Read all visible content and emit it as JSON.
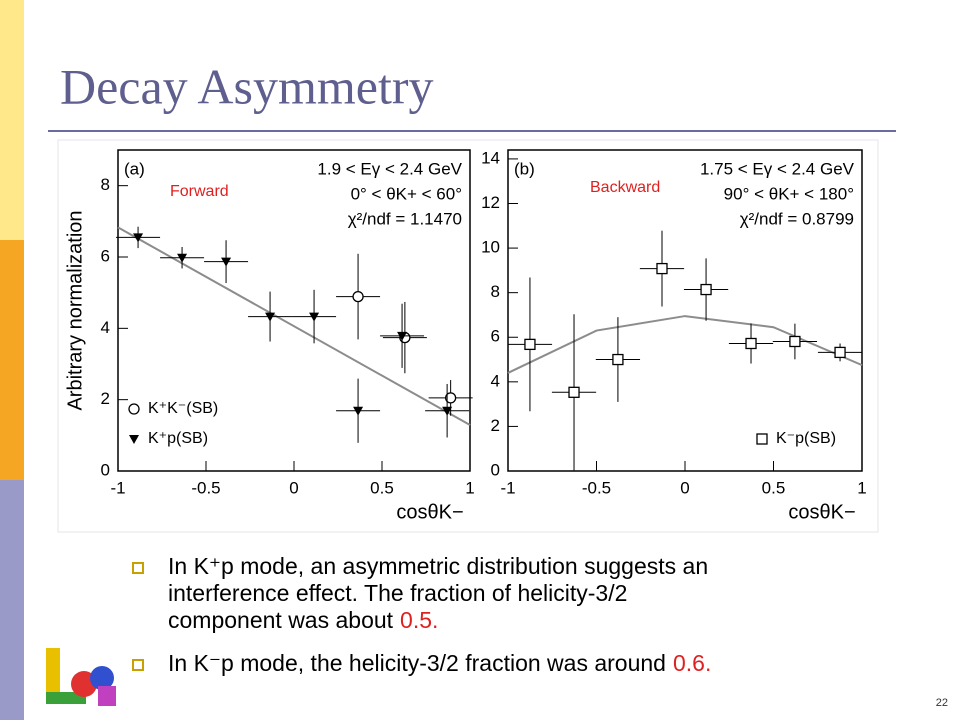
{
  "title": "Decay Asymmetry",
  "chart_data": [
    {
      "type": "scatter",
      "panel": "(a)",
      "label": "Forward",
      "annotations": [
        "1.9 < Eγ < 2.4 GeV",
        "0° < θK+ < 60°",
        "χ²/ndf = 1.1470"
      ],
      "xlabel": "cosθK−",
      "ylabel": "Arbitrary normalization",
      "xlim": [
        -1,
        1
      ],
      "ylim": [
        0,
        9
      ],
      "xticks": [
        -1,
        -0.5,
        0,
        0.5,
        1
      ],
      "yticks": [
        0,
        2,
        4,
        6,
        8
      ],
      "legend": "lower left",
      "series": [
        {
          "name": "K⁺K⁻(SB)",
          "marker": "circle",
          "color": "#000000",
          "x": [
            0.364,
            0.63,
            0.89
          ],
          "values": [
            4.89,
            3.74,
            2.05
          ],
          "errors": [
            1.2,
            1.0,
            0.5
          ],
          "xerr": [
            0.125,
            0.125,
            0.125
          ]
        },
        {
          "name": "K⁺p(SB)",
          "marker": "triangle",
          "color": "#000000",
          "x": [
            -0.886,
            -0.636,
            -0.386,
            -0.136,
            0.114,
            0.364,
            0.614,
            0.87
          ],
          "values": [
            6.55,
            5.98,
            5.87,
            4.33,
            4.33,
            1.69,
            3.79,
            1.69
          ],
          "errors": [
            0.3,
            0.3,
            0.6,
            0.7,
            0.75,
            0.9,
            0.9,
            0.75
          ],
          "xerr": [
            0.125,
            0.125,
            0.125,
            0.125,
            0.125,
            0.125,
            0.125,
            0.125
          ]
        }
      ],
      "fit": {
        "color": "#8c8c8c",
        "x": [
          -1,
          1
        ],
        "values": [
          6.83,
          1.29
        ]
      }
    },
    {
      "type": "scatter",
      "panel": "(b)",
      "label": "Backward",
      "annotations": [
        "1.75 < Eγ < 2.4 GeV",
        "90° < θK+ < 180°",
        "χ²/ndf = 0.8799"
      ],
      "xlabel": "cosθK−",
      "xlim": [
        -1,
        1
      ],
      "ylim": [
        0,
        14.4
      ],
      "xticks": [
        -1,
        -0.5,
        0,
        0.5,
        1
      ],
      "yticks": [
        0,
        2,
        4,
        6,
        8,
        10,
        12,
        14
      ],
      "legend": "lower right",
      "series": [
        {
          "name": "K⁻p(SB)",
          "marker": "square",
          "color": "#000000",
          "x": [
            -0.876,
            -0.627,
            -0.379,
            -0.13,
            0.119,
            0.373,
            0.621,
            0.876
          ],
          "values": [
            5.68,
            3.53,
            5.0,
            9.08,
            8.14,
            5.72,
            5.81,
            5.32
          ],
          "errors": [
            3.0,
            3.5,
            1.9,
            1.7,
            1.4,
            0.9,
            0.8,
            0.4
          ],
          "xerr": [
            0.125,
            0.125,
            0.125,
            0.125,
            0.125,
            0.125,
            0.125,
            0.125
          ]
        }
      ],
      "fit": {
        "color": "#8c8c8c",
        "x": [
          -1,
          -0.5,
          0,
          0.5,
          1
        ],
        "values": [
          4.4,
          6.3,
          6.95,
          6.45,
          4.75
        ]
      }
    }
  ],
  "bullets": [
    {
      "lines": [
        "In K⁺p mode, an asymmetric distribution suggests an",
        "interference effect. The fraction of helicity-3/2",
        "component was about"
      ],
      "highlight": "0.5."
    },
    {
      "lines": [
        "In K⁻p mode, the helicity-3/2 fraction was around"
      ],
      "highlight": "0.6."
    }
  ],
  "page_number": "22"
}
